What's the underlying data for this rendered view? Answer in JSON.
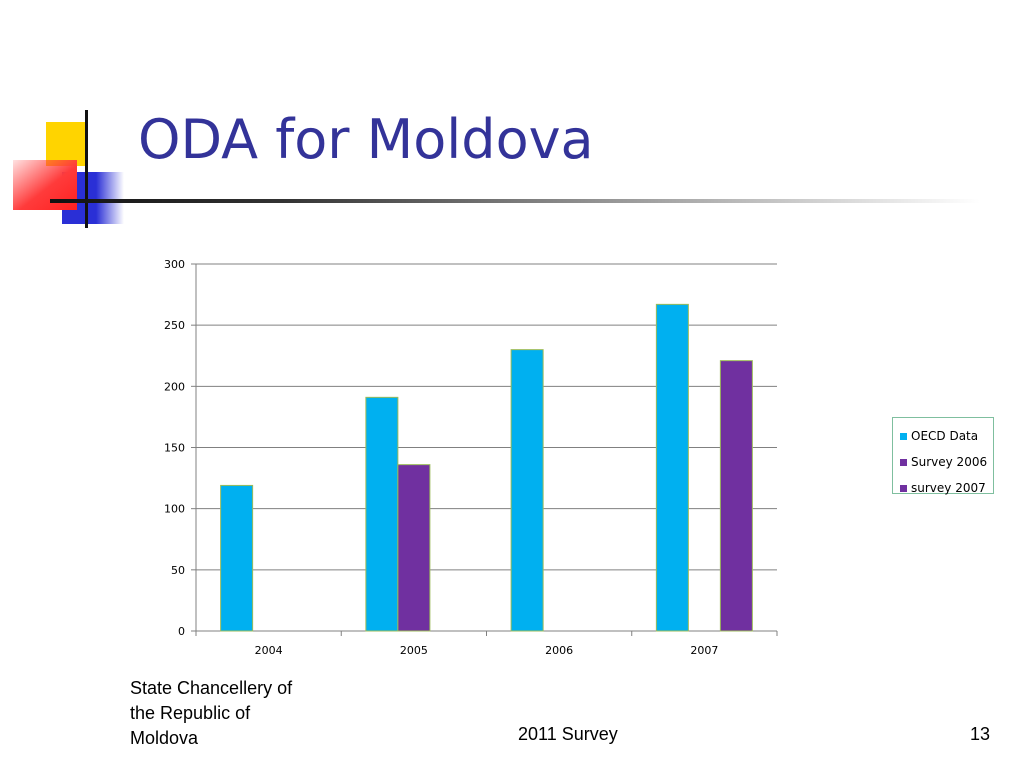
{
  "slide": {
    "title": "ODA for Moldova",
    "footer_left": "State Chancellery of the Republic of Moldova",
    "footer_center": "2011 Survey",
    "page_number": "13"
  },
  "colors": {
    "title": "#333399",
    "oecd": "#00b0f0",
    "survey2006": "#7030a0",
    "survey2007": "#7030a0",
    "gridline": "#808080",
    "bar_border": "#9bbb59"
  },
  "chart_data": {
    "type": "bar",
    "title": "",
    "xlabel": "",
    "ylabel": "",
    "categories": [
      "2004",
      "2005",
      "2006",
      "2007"
    ],
    "ylim": [
      0,
      300
    ],
    "yticks": [
      0,
      50,
      100,
      150,
      200,
      250,
      300
    ],
    "grid": true,
    "legend_position": "right",
    "series": [
      {
        "name": "OECD Data",
        "color": "#00b0f0",
        "values": [
          119,
          191,
          230,
          267
        ]
      },
      {
        "name": "Survey 2006",
        "color": "#7030a0",
        "values": [
          null,
          136,
          null,
          null
        ]
      },
      {
        "name": "survey 2007",
        "color": "#7030a0",
        "values": [
          null,
          null,
          null,
          221
        ]
      }
    ]
  }
}
